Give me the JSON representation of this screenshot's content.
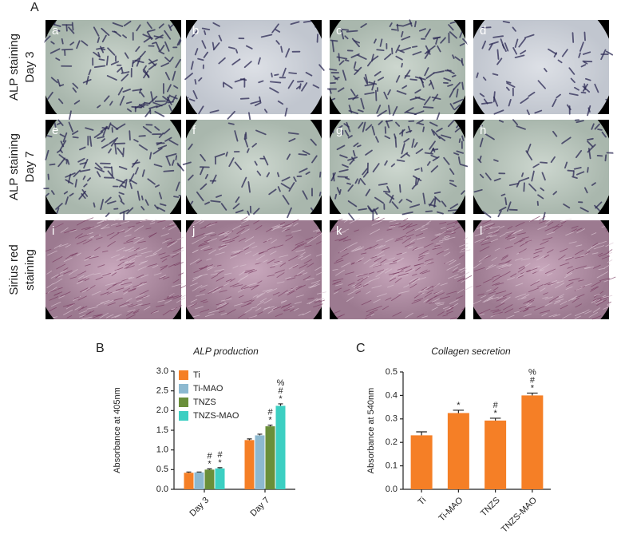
{
  "panel_labels": [
    "A",
    "B",
    "C"
  ],
  "image_grid": {
    "row_labels": [
      [
        "ALP staining",
        "Day 3"
      ],
      [
        "ALP staining",
        "Day 7"
      ],
      [
        "Sirius red",
        "staining"
      ]
    ],
    "image_labels": [
      "a",
      "b",
      "c",
      "d",
      "e",
      "f",
      "g",
      "h",
      "i",
      "j",
      "k",
      "l"
    ]
  },
  "chart_data": [
    {
      "type": "bar",
      "title": "ALP production",
      "y_label": "Absorbance at 405nm",
      "categories": [
        "Day 3",
        "Day 7"
      ],
      "series": [
        {
          "name": "Ti",
          "color": "#f57f26",
          "values": [
            0.42,
            1.25
          ],
          "errors": [
            0.02,
            0.03
          ],
          "annotations": [
            null,
            null
          ]
        },
        {
          "name": "Ti-MAO",
          "color": "#8db9d0",
          "values": [
            0.43,
            1.37
          ],
          "errors": [
            0.01,
            0.03
          ],
          "annotations": [
            null,
            null
          ]
        },
        {
          "name": "TNZS",
          "color": "#6a8f3a",
          "values": [
            0.5,
            1.6
          ],
          "errors": [
            0.02,
            0.03
          ],
          "annotations": [
            [
              "#",
              "*"
            ],
            [
              "#",
              "*"
            ]
          ]
        },
        {
          "name": "TNZS-MAO",
          "color": "#3ccfc2",
          "values": [
            0.53,
            2.12
          ],
          "errors": [
            0.02,
            0.05
          ],
          "annotations": [
            [
              "#",
              "*"
            ],
            [
              "%",
              "#",
              "*"
            ]
          ]
        }
      ],
      "ylim": [
        0,
        3
      ],
      "yticks": [
        {
          "value": 0,
          "label": "0.0"
        },
        0.5,
        {
          "value": 1,
          "label": "1.0"
        },
        1.5,
        {
          "value": 2,
          "label": "2.0"
        },
        2.5,
        {
          "value": 3,
          "label": "3.0"
        }
      ],
      "legend": "top-left"
    },
    {
      "type": "bar",
      "title": "Collagen secretion",
      "y_label": "Absorbance at 540nm",
      "categories": [
        "Ti",
        "Ti-MAO",
        "TNZS",
        "TNZS-MAO"
      ],
      "series": [
        {
          "color": "#f57f26",
          "values": [
            0.23,
            0.325,
            0.293,
            0.4
          ],
          "errors": [
            0.015,
            0.012,
            0.01,
            0.01
          ],
          "annotations": [
            null,
            [
              "*"
            ],
            [
              "#",
              "*"
            ],
            [
              "%",
              "#",
              "*"
            ]
          ]
        }
      ],
      "ylim": [
        0,
        0.5
      ],
      "yticks": [
        {
          "value": 0,
          "label": "0.0"
        },
        0.1,
        0.2,
        0.3,
        0.4,
        0.5
      ]
    }
  ]
}
